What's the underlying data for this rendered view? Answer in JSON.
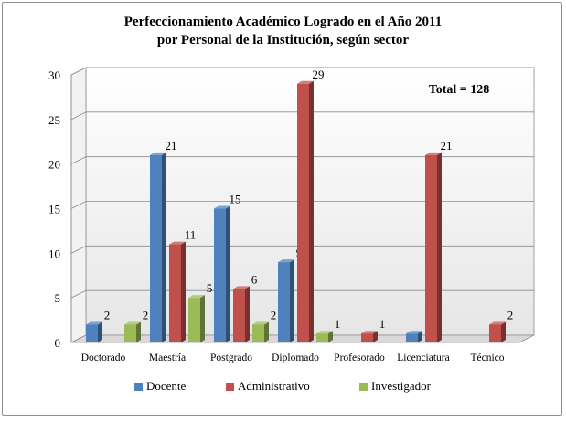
{
  "chart_data": {
    "type": "bar",
    "title_lines": [
      "Perfeccionamiento  Académico Logrado en el Año 2011",
      "por Personal de la Institución, según sector"
    ],
    "annotation": "Total = 128",
    "categories": [
      "Doctorado",
      "Maestría",
      "Postgrado",
      "Diplomado",
      "Profesorado",
      "Licenciatura",
      "Técnico"
    ],
    "series": [
      {
        "name": "Docente",
        "color": "#4f81bd",
        "values": [
          2,
          21,
          15,
          9,
          null,
          1,
          null
        ]
      },
      {
        "name": "Administrativo",
        "color": "#c0504d",
        "values": [
          null,
          11,
          6,
          29,
          1,
          21,
          2
        ]
      },
      {
        "name": "Investigador",
        "color": "#9bbb59",
        "values": [
          2,
          5,
          2,
          1,
          null,
          null,
          null
        ]
      }
    ],
    "ylim": [
      0,
      30
    ],
    "yticks": [
      0,
      5,
      10,
      15,
      20,
      25,
      30
    ],
    "grid": true,
    "legend_position": "bottom"
  }
}
